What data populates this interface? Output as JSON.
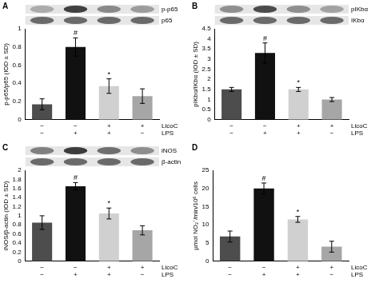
{
  "chart_data": [
    {
      "type": "bar",
      "panel": "A",
      "blot_labels": [
        "p-p65",
        "p65"
      ],
      "categories": [
        [
          "−",
          "−"
        ],
        [
          "−",
          "+"
        ],
        [
          "+",
          "+"
        ],
        [
          "+",
          "−"
        ]
      ],
      "row_labels": [
        "LicoC",
        "LPS"
      ],
      "values": [
        0.17,
        0.8,
        0.37,
        0.26
      ],
      "errors": [
        0.06,
        0.1,
        0.08,
        0.08
      ],
      "significance": [
        null,
        "#",
        "*",
        null
      ],
      "colors": [
        "#4d4d4d",
        "#111111",
        "#d0d0d0",
        "#a6a6a6"
      ],
      "y_label": "p-p65/p65 (IOD ± SD)",
      "ylim": [
        0,
        1
      ],
      "yticks": [
        0,
        0.2,
        0.4,
        0.6,
        0.8,
        1
      ],
      "grid": false
    },
    {
      "type": "bar",
      "panel": "B",
      "blot_labels": [
        "pIKbα",
        "IKbα"
      ],
      "categories": [
        [
          "−",
          "−"
        ],
        [
          "−",
          "+"
        ],
        [
          "+",
          "+"
        ],
        [
          "+",
          "−"
        ]
      ],
      "row_labels": [
        "LicoC",
        "LPS"
      ],
      "values": [
        1.5,
        3.3,
        1.5,
        1.0
      ],
      "errors": [
        0.1,
        0.5,
        0.1,
        0.1
      ],
      "significance": [
        null,
        "#",
        "*",
        null
      ],
      "colors": [
        "#4d4d4d",
        "#111111",
        "#d0d0d0",
        "#a6a6a6"
      ],
      "y_label": "pIKbα/IKbα (IOD ± SD)",
      "ylim": [
        0,
        4.5
      ],
      "yticks": [
        0,
        0.5,
        1,
        1.5,
        2,
        2.5,
        3,
        3.5,
        4,
        4.5
      ],
      "grid": false
    },
    {
      "type": "bar",
      "panel": "C",
      "blot_labels": [
        "iNOS",
        "β-actin"
      ],
      "categories": [
        [
          "−",
          "−"
        ],
        [
          "−",
          "+"
        ],
        [
          "+",
          "+"
        ],
        [
          "+",
          "−"
        ]
      ],
      "row_labels": [
        "LicoC",
        "LPS"
      ],
      "values": [
        0.85,
        1.65,
        1.05,
        0.68
      ],
      "errors": [
        0.15,
        0.08,
        0.12,
        0.1
      ],
      "significance": [
        null,
        "#",
        "*",
        null
      ],
      "colors": [
        "#4d4d4d",
        "#111111",
        "#d0d0d0",
        "#a6a6a6"
      ],
      "y_label": "iNOS/β-actin (IOD ± SD)",
      "ylim": [
        0,
        2
      ],
      "yticks": [
        0,
        0.2,
        0.4,
        0.6,
        0.8,
        1,
        1.2,
        1.4,
        1.6,
        1.8,
        2
      ],
      "grid": false
    },
    {
      "type": "bar",
      "panel": "D",
      "categories": [
        [
          "−",
          "−"
        ],
        [
          "−",
          "+"
        ],
        [
          "+",
          "+"
        ],
        [
          "+",
          "−"
        ]
      ],
      "row_labels": [
        "LicoC",
        "LPS"
      ],
      "values": [
        6.8,
        20,
        11.5,
        4
      ],
      "errors": [
        1.5,
        1.5,
        0.8,
        1.5
      ],
      "significance": [
        null,
        "#",
        "*",
        null
      ],
      "colors": [
        "#4d4d4d",
        "#111111",
        "#d0d0d0",
        "#a6a6a6"
      ],
      "y_label": "µmol NO₂⁻/min/10⁶ cells",
      "ylim": [
        0,
        25
      ],
      "yticks": [
        0,
        5,
        10,
        15,
        20,
        25
      ],
      "grid": false
    }
  ]
}
